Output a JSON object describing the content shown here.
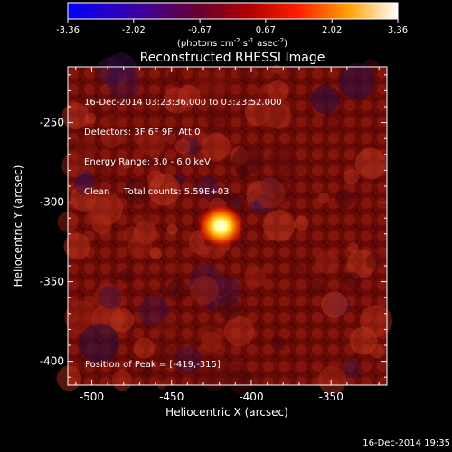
{
  "colorbar": {
    "ticks": [
      "-3.36",
      "-2.02",
      "-0.67",
      "0.67",
      "2.02",
      "3.36"
    ],
    "tick_values": [
      -3.36,
      -2.02,
      -0.67,
      0.67,
      2.02,
      3.36
    ],
    "unit_label": "(photons cm",
    "unit_exp1": "-2",
    "unit_mid": " s",
    "unit_exp2": "-1",
    "unit_tail": " asec",
    "unit_exp3": "-2",
    "unit_close": ")",
    "colormap_stops": [
      "#0000ff",
      "#4b0082",
      "#8b0000",
      "#ff0000",
      "#ffa500",
      "#ffffff"
    ]
  },
  "plot": {
    "title": "Reconstructed RHESSI Image",
    "annotations": [
      "16-Dec-2014 03:23:36.000 to 03:23:52.000",
      "Detectors: 3F 6F 9F, Att 0",
      "Energy Range: 3.0 - 6.0 keV",
      "Clean     Total counts: 5.59E+03"
    ],
    "peak_label": "Position of Peak = [-419,-315]"
  },
  "chart_data": {
    "type": "heatmap",
    "title": "Reconstructed RHESSI Image",
    "xlabel": "Heliocentric X (arcsec)",
    "ylabel": "Heliocentric Y (arcsec)",
    "xlim": [
      -515,
      -315
    ],
    "ylim": [
      -415,
      -215
    ],
    "xticks": [
      -500,
      -450,
      -400,
      -350
    ],
    "yticks": [
      -400,
      -350,
      -300,
      -250
    ],
    "xtick_labels": [
      "-500",
      "-450",
      "-400",
      "-350"
    ],
    "ytick_labels": [
      "-400",
      "-350",
      "-300",
      "-250"
    ],
    "colorbar_range": [
      -3.36,
      3.36
    ],
    "peak_position": [
      -419,
      -315
    ],
    "colormap": "blue-purple-red-yellow-white"
  },
  "footer": {
    "timestamp": "16-Dec-2014 19:35"
  }
}
